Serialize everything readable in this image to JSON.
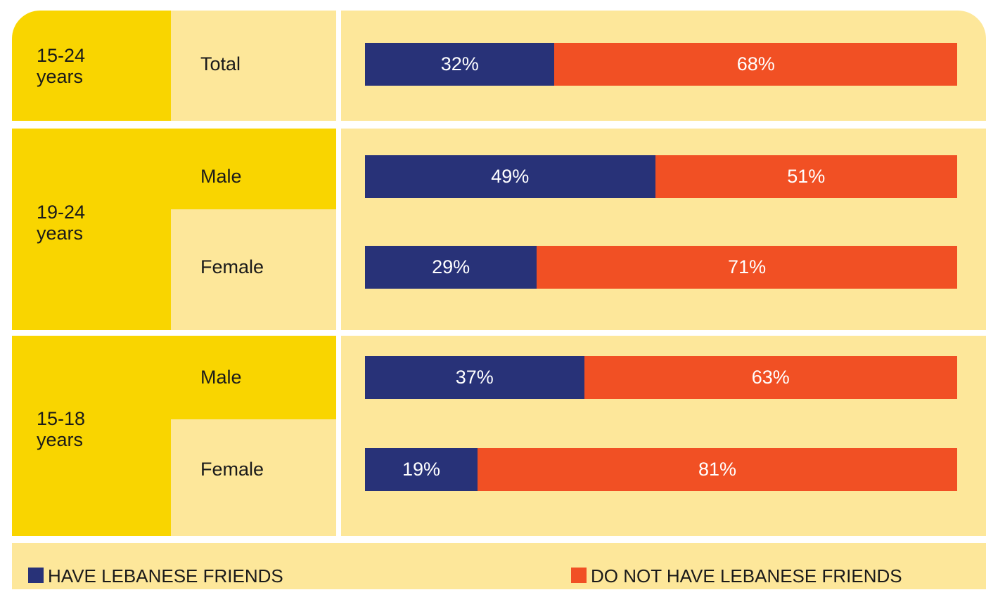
{
  "chart_data": {
    "type": "bar",
    "stacked": true,
    "orientation": "horizontal",
    "groups": [
      {
        "label": "15-24 years",
        "categories": [
          "Total"
        ]
      },
      {
        "label": "19-24 years",
        "categories": [
          "Male",
          "Female"
        ]
      },
      {
        "label": "15-18 years",
        "categories": [
          "Male",
          "Female"
        ]
      }
    ],
    "series": [
      {
        "name": "HAVE LEBANESE FRIENDS",
        "color": "#283278",
        "values": [
          32,
          49,
          29,
          37,
          19
        ],
        "value_labels": [
          "32%",
          "49%",
          "29%",
          "37%",
          "19%"
        ]
      },
      {
        "name": "DO NOT HAVE LEBANESE FRIENDS",
        "color": "#f15024",
        "values": [
          68,
          51,
          71,
          63,
          81
        ],
        "value_labels": [
          "68%",
          "51%",
          "71%",
          "63%",
          "81%"
        ]
      }
    ],
    "xlim": [
      0,
      100
    ]
  }
}
